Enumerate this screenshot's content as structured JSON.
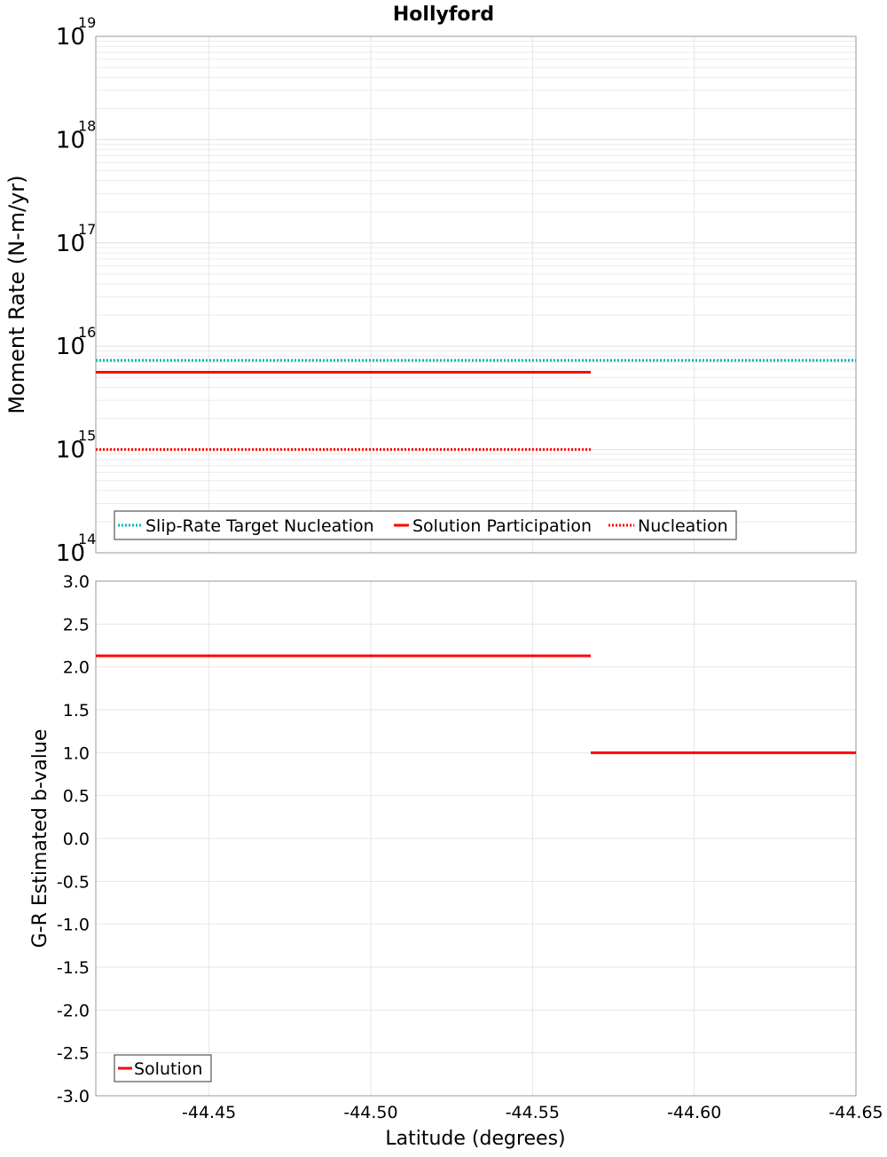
{
  "chart_data": [
    {
      "type": "line",
      "title": "Hollyford",
      "xlabel": "",
      "ylabel": "Moment Rate (N-m/yr)",
      "yscale": "log",
      "ylim": [
        100000000000000.0,
        1e+19
      ],
      "xlim": [
        -44.415,
        -44.65
      ],
      "y_ticks": [
        {
          "base": "10",
          "exp": "14",
          "value": 100000000000000.0
        },
        {
          "base": "10",
          "exp": "15",
          "value": 1000000000000000.0
        },
        {
          "base": "10",
          "exp": "16",
          "value": 1e+16
        },
        {
          "base": "10",
          "exp": "17",
          "value": 1e+17
        },
        {
          "base": "10",
          "exp": "18",
          "value": 1e+18
        },
        {
          "base": "10",
          "exp": "19",
          "value": 1e+19
        }
      ],
      "grid": true,
      "legend_position": "bottom-left",
      "series": [
        {
          "name": "Slip-Rate Target Nucleation",
          "color": "#00b4b4",
          "style": "dotted",
          "segments": [
            [
              -44.415,
              -44.65,
              7300000000000000.0
            ]
          ]
        },
        {
          "name": "Solution Participation",
          "color": "#ff0000",
          "style": "solid",
          "segments": [
            [
              -44.415,
              -44.568,
              5600000000000000.0
            ]
          ]
        },
        {
          "name": "Nucleation",
          "color": "#ff0000",
          "style": "dotted",
          "segments": [
            [
              -44.415,
              -44.568,
              1000000000000000.0
            ]
          ]
        }
      ]
    },
    {
      "type": "line",
      "title": "",
      "xlabel": "Latitude (degrees)",
      "ylabel": "G-R Estimated b-value",
      "ylim": [
        -3.0,
        3.0
      ],
      "xlim": [
        -44.415,
        -44.65
      ],
      "y_ticks": [
        "3.0",
        "2.5",
        "2.0",
        "1.5",
        "1.0",
        "0.5",
        "0.0",
        "-0.5",
        "-1.0",
        "-1.5",
        "-2.0",
        "-2.5",
        "-3.0"
      ],
      "x_ticks": [
        "-44.45",
        "-44.50",
        "-44.55",
        "-44.60",
        "-44.65"
      ],
      "grid": true,
      "legend_position": "bottom-left",
      "series": [
        {
          "name": "Solution",
          "color": "#ff0000",
          "style": "solid",
          "segments": [
            [
              -44.415,
              -44.568,
              2.13
            ],
            [
              -44.568,
              -44.65,
              1.0
            ]
          ]
        }
      ]
    }
  ]
}
